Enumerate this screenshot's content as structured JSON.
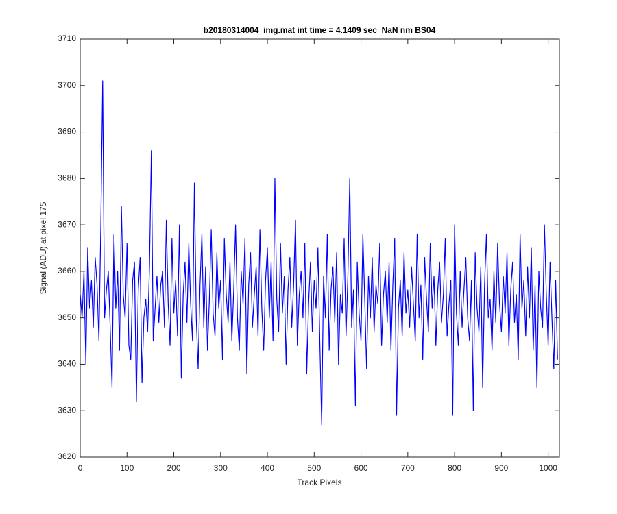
{
  "chart_data": {
    "type": "line",
    "title": "b20180314004_img.mat int time = 4.1409 sec  NaN nm BS04",
    "xlabel": "Track Pixels",
    "ylabel": "Signal (ADU) at pixel 175",
    "xlim": [
      0,
      1024
    ],
    "ylim": [
      3620,
      3710
    ],
    "xticks": [
      0,
      100,
      200,
      300,
      400,
      500,
      600,
      700,
      800,
      900,
      1000
    ],
    "yticks": [
      3620,
      3630,
      3640,
      3650,
      3660,
      3670,
      3680,
      3690,
      3700,
      3710
    ],
    "grid": false,
    "x": [
      0,
      4,
      8,
      12,
      16,
      20,
      24,
      28,
      32,
      36,
      40,
      44,
      48,
      52,
      56,
      60,
      64,
      68,
      72,
      76,
      80,
      84,
      88,
      92,
      96,
      100,
      104,
      108,
      112,
      116,
      120,
      124,
      128,
      132,
      136,
      140,
      144,
      148,
      152,
      156,
      160,
      164,
      168,
      172,
      176,
      180,
      184,
      188,
      192,
      196,
      200,
      204,
      208,
      212,
      216,
      220,
      224,
      228,
      232,
      236,
      240,
      244,
      248,
      252,
      256,
      260,
      264,
      268,
      272,
      276,
      280,
      284,
      288,
      292,
      296,
      300,
      304,
      308,
      312,
      316,
      320,
      324,
      328,
      332,
      336,
      340,
      344,
      348,
      352,
      356,
      360,
      364,
      368,
      372,
      376,
      380,
      384,
      388,
      392,
      396,
      400,
      404,
      408,
      412,
      416,
      420,
      424,
      428,
      432,
      436,
      440,
      444,
      448,
      452,
      456,
      460,
      464,
      468,
      472,
      476,
      480,
      484,
      488,
      492,
      496,
      500,
      504,
      508,
      512,
      516,
      520,
      524,
      528,
      532,
      536,
      540,
      544,
      548,
      552,
      556,
      560,
      564,
      568,
      572,
      576,
      580,
      584,
      588,
      592,
      596,
      600,
      604,
      608,
      612,
      616,
      620,
      624,
      628,
      632,
      636,
      640,
      644,
      648,
      652,
      656,
      660,
      664,
      668,
      672,
      676,
      680,
      684,
      688,
      692,
      696,
      700,
      704,
      708,
      712,
      716,
      720,
      724,
      728,
      732,
      736,
      740,
      744,
      748,
      752,
      756,
      760,
      764,
      768,
      772,
      776,
      780,
      784,
      788,
      792,
      796,
      800,
      804,
      808,
      812,
      816,
      820,
      824,
      828,
      832,
      836,
      840,
      844,
      848,
      852,
      856,
      860,
      864,
      868,
      872,
      876,
      880,
      884,
      888,
      892,
      896,
      900,
      904,
      908,
      912,
      916,
      920,
      924,
      928,
      932,
      936,
      940,
      944,
      948,
      952,
      956,
      960,
      964,
      968,
      972,
      976,
      980,
      984,
      988,
      992,
      996,
      1000,
      1004,
      1008,
      1012,
      1016,
      1020
    ],
    "series": [
      {
        "color": "#0000ff",
        "values": [
          3655,
          3650,
          3660,
          3640,
          3665,
          3652,
          3658,
          3648,
          3663,
          3657,
          3645,
          3670,
          3701,
          3650,
          3656,
          3660,
          3648,
          3635,
          3668,
          3652,
          3660,
          3643,
          3674,
          3655,
          3650,
          3666,
          3644,
          3641,
          3658,
          3662,
          3632,
          3656,
          3663,
          3636,
          3650,
          3654,
          3647,
          3661,
          3686,
          3645,
          3652,
          3659,
          3649,
          3657,
          3660,
          3648,
          3671,
          3653,
          3644,
          3667,
          3651,
          3658,
          3646,
          3670,
          3637,
          3655,
          3662,
          3649,
          3666,
          3653,
          3645,
          3679,
          3650,
          3639,
          3657,
          3668,
          3648,
          3661,
          3643,
          3654,
          3669,
          3651,
          3646,
          3664,
          3652,
          3658,
          3641,
          3667,
          3655,
          3649,
          3662,
          3645,
          3656,
          3670,
          3650,
          3643,
          3660,
          3653,
          3667,
          3638,
          3657,
          3664,
          3648,
          3655,
          3661,
          3646,
          3669,
          3652,
          3643,
          3658,
          3665,
          3650,
          3662,
          3645,
          3680,
          3654,
          3647,
          3666,
          3651,
          3659,
          3640,
          3656,
          3663,
          3648,
          3657,
          3671,
          3644,
          3655,
          3660,
          3650,
          3666,
          3638,
          3653,
          3662,
          3647,
          3658,
          3652,
          3665,
          3645,
          3627,
          3659,
          3650,
          3668,
          3643,
          3656,
          3661,
          3649,
          3664,
          3640,
          3655,
          3651,
          3667,
          3646,
          3659,
          3680,
          3648,
          3656,
          3631,
          3662,
          3651,
          3645,
          3668,
          3654,
          3639,
          3659,
          3650,
          3663,
          3647,
          3657,
          3653,
          3666,
          3644,
          3655,
          3660,
          3649,
          3662,
          3643,
          3657,
          3667,
          3629,
          3652,
          3658,
          3646,
          3664,
          3651,
          3656,
          3648,
          3661,
          3653,
          3645,
          3668,
          3650,
          3657,
          3641,
          3663,
          3654,
          3647,
          3666,
          3652,
          3659,
          3644,
          3656,
          3662,
          3649,
          3655,
          3667,
          3646,
          3653,
          3658,
          3629,
          3670,
          3651,
          3644,
          3660,
          3648,
          3656,
          3663,
          3650,
          3645,
          3658,
          3630,
          3664,
          3652,
          3647,
          3661,
          3635,
          3657,
          3668,
          3650,
          3654,
          3643,
          3660,
          3649,
          3666,
          3653,
          3647,
          3659,
          3651,
          3664,
          3644,
          3656,
          3662,
          3649,
          3655,
          3641,
          3668,
          3652,
          3658,
          3646,
          3661,
          3650,
          3665,
          3643,
          3657,
          3635,
          3660,
          3652,
          3648,
          3670,
          3655,
          3644,
          3662,
          3650,
          3639,
          3658,
          3641
        ]
      }
    ]
  }
}
